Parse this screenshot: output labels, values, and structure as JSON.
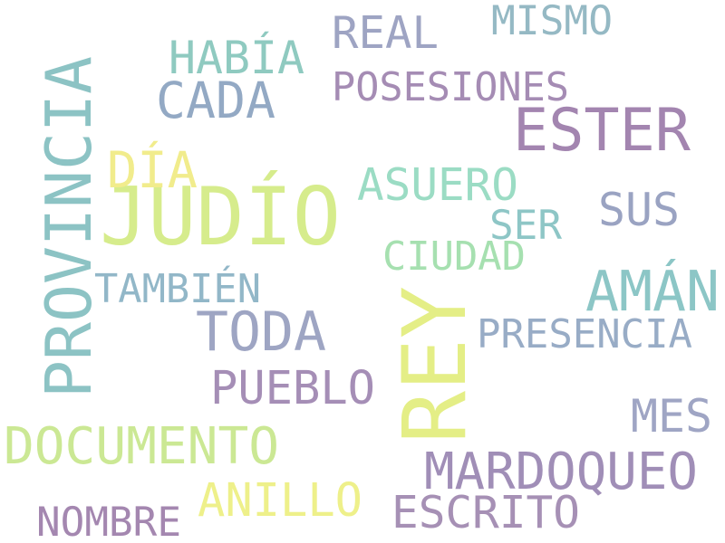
{
  "words": {
    "judio": {
      "text": "JUDÍO",
      "color": "#d6ec8c"
    },
    "rey": {
      "text": "REY",
      "color": "#e4ee86"
    },
    "provincia": {
      "text": "PROVINCIA",
      "color": "#8cc3c4"
    },
    "ester": {
      "text": "ESTER",
      "color": "#a385b0"
    },
    "documento": {
      "text": "DOCUMENTO",
      "color": "#cbe894"
    },
    "toda": {
      "text": "TODA",
      "color": "#9ea5c3"
    },
    "aman": {
      "text": "AMÁN",
      "color": "#8cc6c6"
    },
    "mardoqueo": {
      "text": "MARDOQUEO",
      "color": "#a08eb7"
    },
    "cada": {
      "text": "CADA",
      "color": "#93a9c4"
    },
    "habia": {
      "text": "HABÍA",
      "color": "#8fcac0"
    },
    "real": {
      "text": "REAL",
      "color": "#9ea4c3"
    },
    "asuero": {
      "text": "ASUERO",
      "color": "#9bdcc4"
    },
    "pueblo": {
      "text": "PUEBLO",
      "color": "#a58eb6"
    },
    "escrito": {
      "text": "ESCRITO",
      "color": "#a690b5"
    },
    "anillo": {
      "text": "ANILLO",
      "color": "#eef08a"
    },
    "nombre": {
      "text": "NOMBRE",
      "color": "#a487b0"
    },
    "posesiones": {
      "text": "POSESIONES",
      "color": "#a58cb4"
    },
    "dia": {
      "text": "DÍA",
      "color": "#f1ec8c"
    },
    "sus": {
      "text": "SUS",
      "color": "#9aa3c2"
    },
    "mes": {
      "text": "MES",
      "color": "#9fa5c4"
    },
    "presencia": {
      "text": "PRESENCIA",
      "color": "#98acc6"
    },
    "mismo": {
      "text": "MISMO",
      "color": "#95b9c4"
    },
    "ciudad": {
      "text": "CIUDAD",
      "color": "#a6e0b0"
    },
    "tambien": {
      "text": "TAMBIÉN",
      "color": "#92b7c8"
    },
    "ser": {
      "text": "SER",
      "color": "#8ec6c6"
    }
  }
}
